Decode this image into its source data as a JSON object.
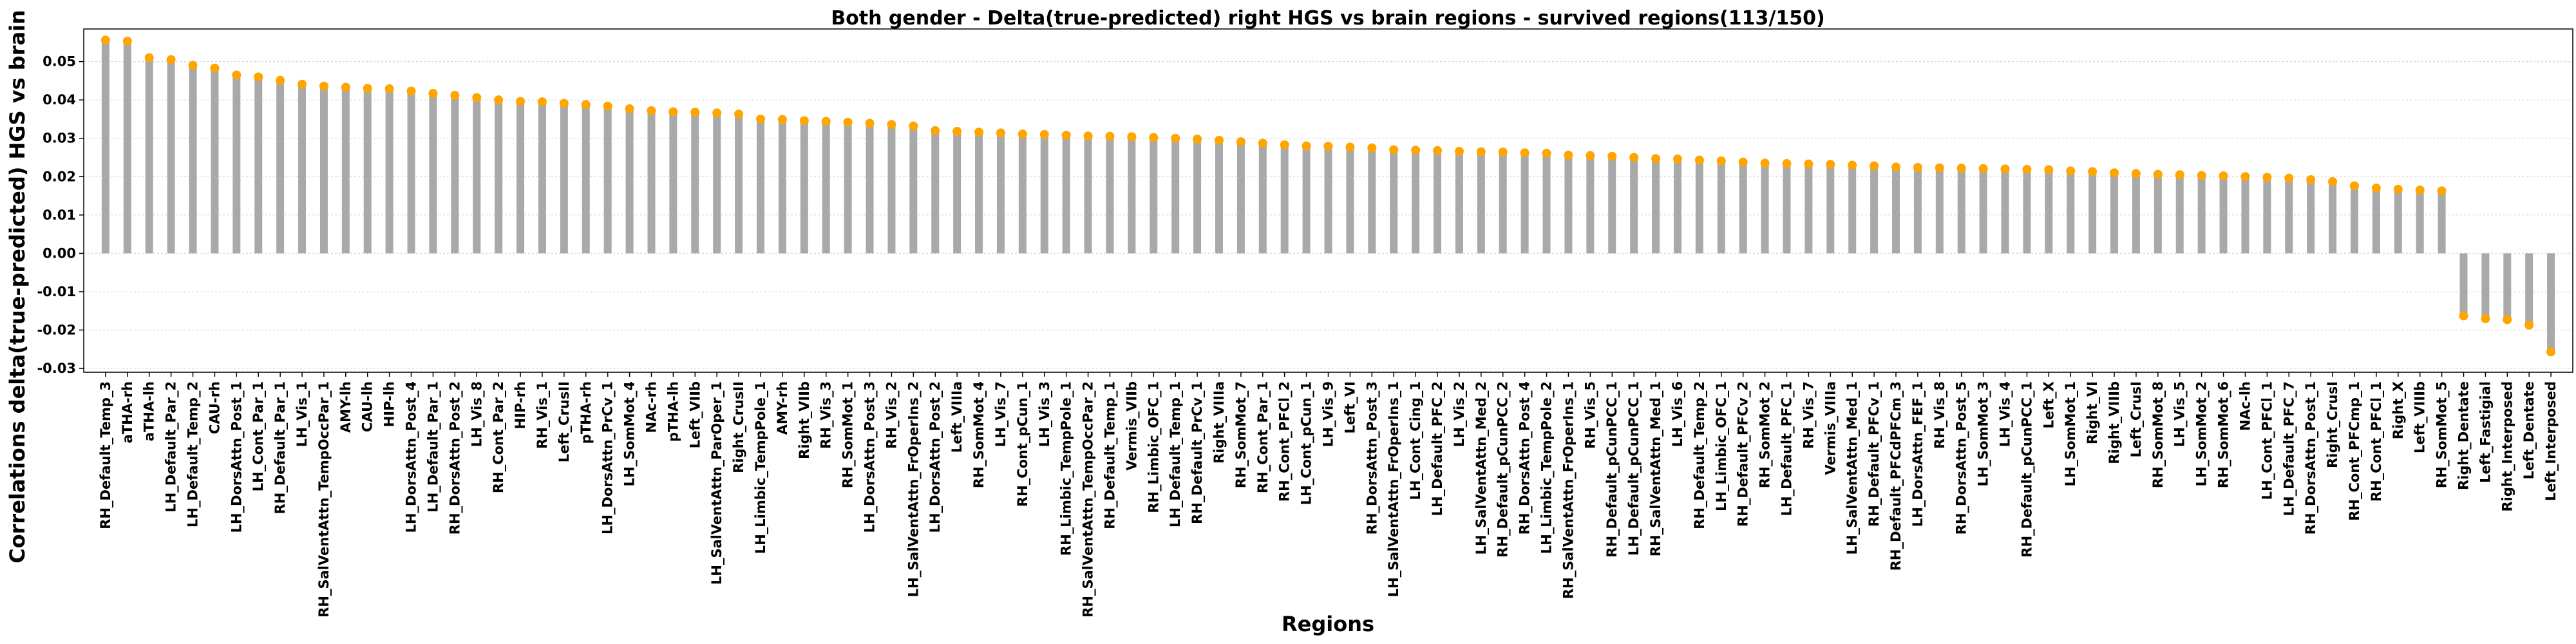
{
  "chart_data": {
    "type": "bar",
    "title": "Both gender - Delta(true-predicted) right HGS vs brain regions - survived regions(113/150)",
    "xlabel": "Regions",
    "ylabel": "Correlations delta(true-predicted) HGS vs brain",
    "ylim": [
      -0.031,
      0.0585
    ],
    "yticks": [
      "-0.03",
      "-0.02",
      "-0.01",
      "0.00",
      "0.01",
      "0.02",
      "0.03",
      "0.04",
      "0.05"
    ],
    "grid": "horizontal",
    "bar_color": "#a9a9a9",
    "marker_color": "#ffa500",
    "categories": [
      "RH_Default_Temp_3",
      "aTHA-rh",
      "aTHA-lh",
      "LH_Default_Par_2",
      "LH_Default_Temp_2",
      "CAU-rh",
      "LH_DorsAttn_Post_1",
      "LH_Cont_Par_1",
      "RH_Default_Par_1",
      "LH_Vis_1",
      "RH_SalVentAttn_TempOccPar_1",
      "AMY-lh",
      "CAU-lh",
      "HIP-lh",
      "LH_DorsAttn_Post_4",
      "LH_Default_Par_1",
      "RH_DorsAttn_Post_2",
      "LH_Vis_8",
      "RH_Cont_Par_2",
      "HIP-rh",
      "RH_Vis_1",
      "Left_CrusII",
      "pTHA-rh",
      "LH_DorsAttn_PrCv_1",
      "LH_SomMot_4",
      "NAc-rh",
      "pTHA-lh",
      "Left_VIIb",
      "LH_SalVentAttn_ParOper_1",
      "Right_CrusII",
      "LH_Limbic_TempPole_1",
      "AMY-rh",
      "Right_VIIb",
      "RH_Vis_3",
      "RH_SomMot_1",
      "LH_DorsAttn_Post_3",
      "RH_Vis_2",
      "LH_SalVentAttn_FrOperIns_2",
      "LH_DorsAttn_Post_2",
      "Left_VIIIa",
      "RH_SomMot_4",
      "LH_Vis_7",
      "RH_Cont_pCun_1",
      "LH_Vis_3",
      "RH_Limbic_TempPole_1",
      "RH_SalVentAttn_TempOccPar_2",
      "RH_Default_Temp_1",
      "Vermis_VIIb",
      "RH_Limbic_OFC_1",
      "LH_Default_Temp_1",
      "RH_Default_PrCv_1",
      "Right_VIIIa",
      "RH_SomMot_7",
      "RH_Cont_Par_1",
      "RH_Cont_PFCl_2",
      "LH_Cont_pCun_1",
      "LH_Vis_9",
      "Left_VI",
      "RH_DorsAttn_Post_3",
      "LH_SalVentAttn_FrOperIns_1",
      "LH_Cont_Cing_1",
      "LH_Default_PFC_2",
      "LH_Vis_2",
      "LH_SalVentAttn_Med_2",
      "RH_Default_pCunPCC_2",
      "RH_DorsAttn_Post_4",
      "LH_Limbic_TempPole_2",
      "RH_SalVentAttn_FrOperIns_1",
      "RH_Vis_5",
      "RH_Default_pCunPCC_1",
      "LH_Default_pCunPCC_1",
      "RH_SalVentAttn_Med_1",
      "LH_Vis_6",
      "RH_Default_Temp_2",
      "LH_Limbic_OFC_1",
      "RH_Default_PFCv_2",
      "RH_SomMot_2",
      "LH_Default_PFC_1",
      "RH_Vis_7",
      "Vermis_VIIIa",
      "LH_SalVentAttn_Med_1",
      "RH_Default_PFCv_1",
      "RH_Default_PFCdPFCm_3",
      "LH_DorsAttn_FEF_1",
      "RH_Vis_8",
      "RH_DorsAttn_Post_5",
      "LH_SomMot_3",
      "LH_Vis_4",
      "RH_Default_pCunPCC_1",
      "Left_X",
      "LH_SomMot_1",
      "Right_VI",
      "Right_VIIIb",
      "Left_CrusI",
      "RH_SomMot_8",
      "LH_Vis_5",
      "LH_SomMot_2",
      "RH_SomMot_6",
      "NAc-lh",
      "LH_Cont_PFCl_1",
      "LH_Default_PFC_7",
      "RH_DorsAttn_Post_1",
      "Right_CrusI",
      "RH_Cont_PFCmp_1",
      "RH_Cont_PFCl_1",
      "Right_X",
      "Left_VIIIb",
      "RH_SomMot_5",
      "Right_Dentate",
      "Left_Fastigial",
      "Right_Interposed",
      "Left_Dentate",
      "Left_Interposed"
    ],
    "values": [
      0.0556,
      0.0553,
      0.051,
      0.0505,
      0.049,
      0.0483,
      0.0465,
      0.046,
      0.0451,
      0.0441,
      0.0436,
      0.0433,
      0.043,
      0.0429,
      0.0423,
      0.0417,
      0.0412,
      0.0406,
      0.04,
      0.0396,
      0.0395,
      0.0391,
      0.0388,
      0.0384,
      0.0377,
      0.0372,
      0.0369,
      0.0368,
      0.0366,
      0.0363,
      0.035,
      0.0349,
      0.0346,
      0.0344,
      0.0342,
      0.0339,
      0.0336,
      0.0332,
      0.032,
      0.0318,
      0.0316,
      0.0314,
      0.0311,
      0.031,
      0.0308,
      0.0306,
      0.0305,
      0.0304,
      0.0302,
      0.03,
      0.0298,
      0.0295,
      0.0291,
      0.0287,
      0.0283,
      0.028,
      0.0279,
      0.0277,
      0.0275,
      0.027,
      0.0269,
      0.0268,
      0.0266,
      0.0265,
      0.0264,
      0.0262,
      0.0261,
      0.0256,
      0.0255,
      0.0253,
      0.025,
      0.0247,
      0.0246,
      0.0243,
      0.0241,
      0.0238,
      0.0235,
      0.0234,
      0.0233,
      0.0232,
      0.023,
      0.0228,
      0.0225,
      0.0224,
      0.0223,
      0.0222,
      0.0221,
      0.022,
      0.0219,
      0.0218,
      0.0215,
      0.0213,
      0.021,
      0.0208,
      0.0206,
      0.0205,
      0.0203,
      0.0202,
      0.02,
      0.0198,
      0.0196,
      0.0192,
      0.0187,
      0.0176,
      0.017,
      0.0167,
      0.0165,
      0.0163,
      -0.0163,
      -0.017,
      -0.0173,
      -0.0187,
      -0.0257
    ]
  }
}
